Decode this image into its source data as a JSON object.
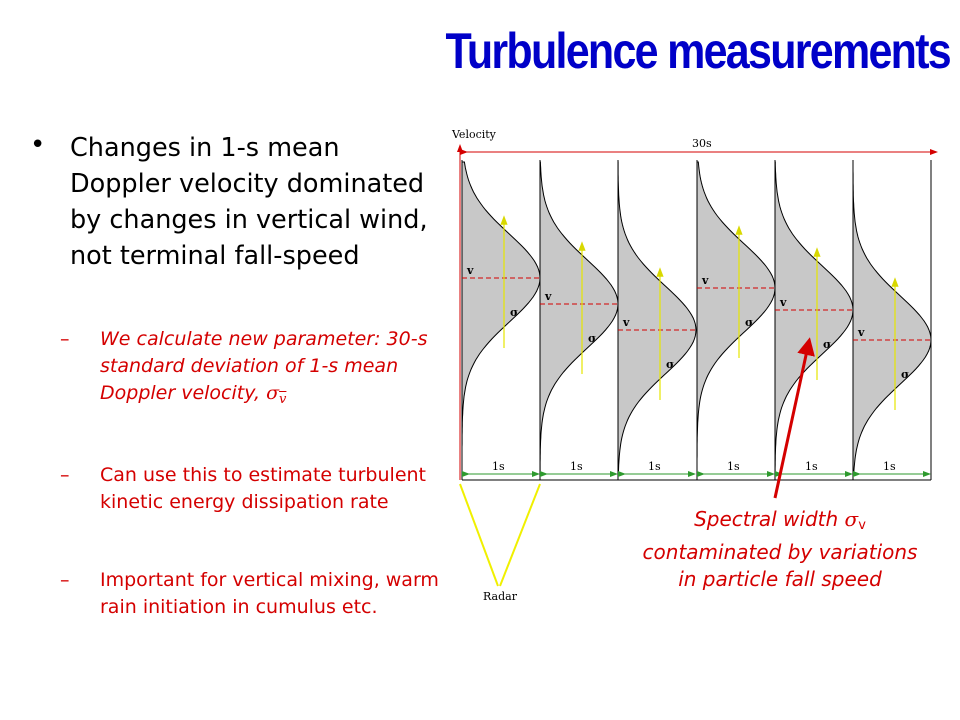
{
  "slide": {
    "title": "Turbulence measurements",
    "bullet": "Changes in 1-s mean Doppler velocity dominated by changes in vertical wind, not terminal fall-speed",
    "subpoints": [
      {
        "text": "We calculate new parameter: 30-s standard deviation of 1-s mean Doppler velocity, ",
        "symbol": "σ",
        "symbol_sub": "v"
      },
      {
        "text": "Can use this to estimate turbulent kinetic energy dissipation rate"
      },
      {
        "text": "Important for vertical mixing, warm rain initiation in cumulus etc."
      }
    ],
    "caption": {
      "prefix": "Spectral width ",
      "symbol": "σ",
      "symbol_sub": "v",
      "suffix": " contaminated by variations in particle fall speed"
    },
    "diagram": {
      "velocity_label": "Velocity",
      "total_span_label": "30s",
      "interval_label": "1s",
      "radar_label": "Radar",
      "mean_label": "v",
      "sigma_label": "σ",
      "colors": {
        "fill": "#c8c8c8",
        "arrow_red": "#d40000",
        "arrow_green": "#2e9a2e",
        "arrow_yellow": "#e6e600",
        "radar_cone": "#f0f000"
      }
    }
  }
}
